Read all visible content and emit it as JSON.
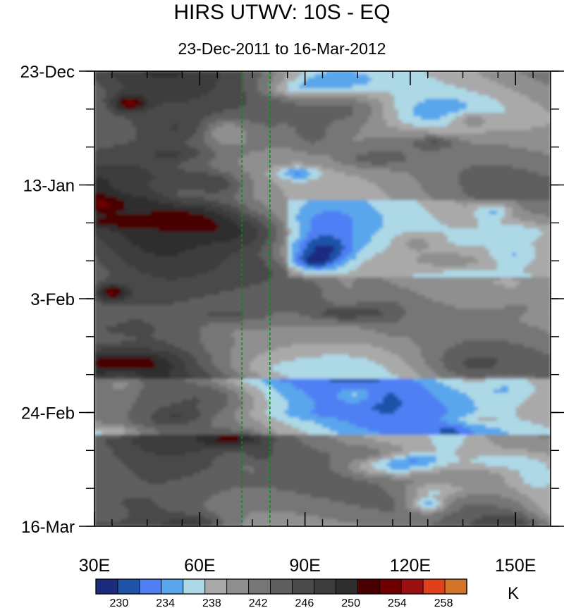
{
  "chart_data": {
    "type": "heatmap",
    "title": "HIRS UTWV: 10S - EQ",
    "subtitle": "23-Dec-2011 to 16-Mar-2012",
    "x_range": [
      30,
      160
    ],
    "x_ticks": [
      30,
      60,
      90,
      120,
      150
    ],
    "x_tick_labels": [
      "30E",
      "60E",
      "90E",
      "120E",
      "150E"
    ],
    "y_range_days": [
      0,
      84
    ],
    "y_ticks_days": [
      0,
      21,
      42,
      63,
      84
    ],
    "y_tick_labels": [
      "23-Dec",
      "13-Jan",
      "3-Feb",
      "24-Feb",
      "16-Mar"
    ],
    "reference_lines_lon": [
      72,
      80
    ],
    "reference_line_color": "#0a8a1a",
    "colorbar": {
      "unit": "K",
      "levels": [
        228,
        230,
        232,
        234,
        236,
        238,
        240,
        242,
        244,
        246,
        248,
        250,
        252,
        254,
        256,
        258,
        260
      ],
      "colors": [
        "#1c2a80",
        "#1f53a8",
        "#4f7ff4",
        "#5aa6ec",
        "#add8e6",
        "#a9a9a9",
        "#8f8f8f",
        "#767676",
        "#5e5e5e",
        "#4a4a4a",
        "#3c3c3c",
        "#2e2e2e",
        "#4a0000",
        "#700000",
        "#9a0f0f",
        "#e0401a",
        "#d2752b"
      ],
      "tick_values": [
        230,
        234,
        238,
        242,
        246,
        250,
        254,
        258
      ],
      "tick_labels": [
        "230",
        "234",
        "238",
        "242",
        "246",
        "250",
        "254",
        "258"
      ]
    }
  }
}
